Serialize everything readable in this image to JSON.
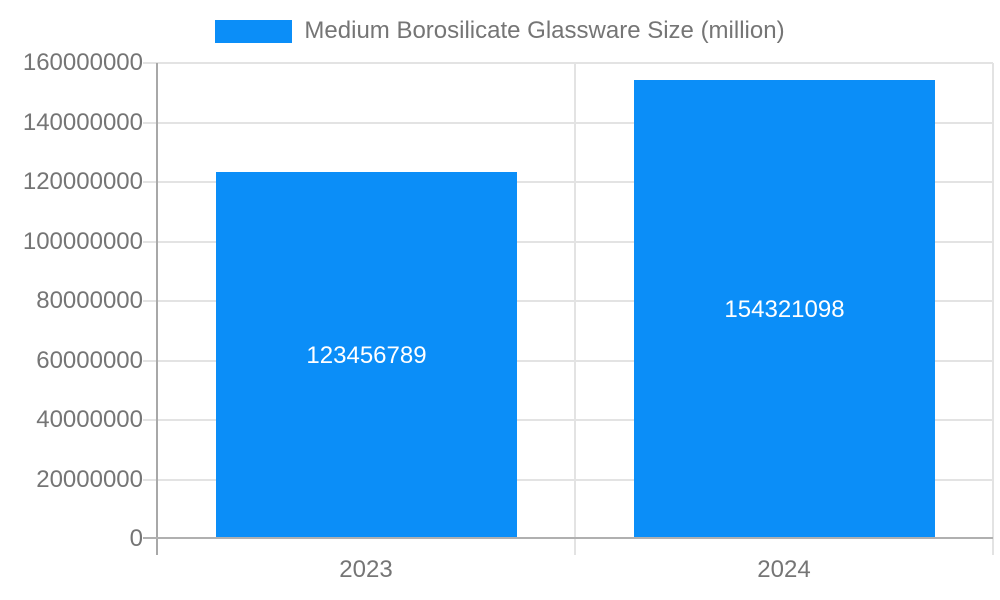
{
  "legend": {
    "label": "Medium Borosilicate Glassware Size (million)",
    "swatch_color": "#0b8ef8"
  },
  "chart_data": {
    "type": "bar",
    "title": "Medium Borosilicate Glassware Size (million)",
    "categories": [
      "2023",
      "2024"
    ],
    "series": [
      {
        "name": "Medium Borosilicate Glassware Size (million)",
        "values": [
          123456789,
          154321098
        ]
      }
    ],
    "value_labels": [
      "123456789",
      "154321098"
    ],
    "xlabel": "",
    "ylabel": "",
    "ylim": [
      0,
      160000000
    ],
    "yticks": [
      0,
      20000000,
      40000000,
      60000000,
      80000000,
      100000000,
      120000000,
      140000000,
      160000000
    ],
    "ytick_labels": [
      "0",
      "20000000",
      "40000000",
      "60000000",
      "80000000",
      "100000000",
      "120000000",
      "140000000",
      "160000000"
    ],
    "grid": true,
    "legend_position": "top",
    "colors": {
      "bar": "#0b8ef8",
      "grid": "#e3e3e3",
      "axis": "#b0b0b0",
      "text": "#757575",
      "bar_label": "#ffffff"
    }
  }
}
